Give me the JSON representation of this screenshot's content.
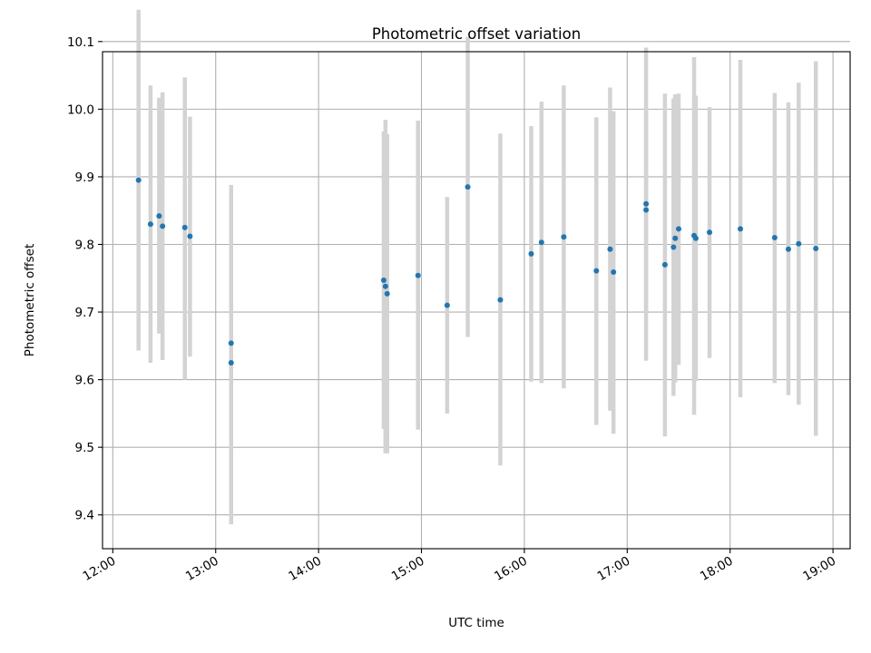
{
  "chart_data": {
    "type": "scatter",
    "title": "Photometric offset variation",
    "xlabel": "UTC time",
    "ylabel": "Photometric offset",
    "x_tick_labels": [
      "12:00",
      "13:00",
      "14:00",
      "15:00",
      "16:00",
      "17:00",
      "18:00",
      "19:00"
    ],
    "y_tick_labels": [
      "9.4",
      "9.5",
      "9.6",
      "9.7",
      "9.8",
      "9.9",
      "10.0",
      "10.1"
    ],
    "xlim": [
      "11:54",
      "19:10"
    ],
    "ylim": [
      9.35,
      10.085
    ],
    "grid": true,
    "colors": {
      "point": "#1f77b4",
      "errorbar": "#d3d3d3",
      "grid": "#b0b0b0"
    },
    "points": [
      {
        "x": "12:15",
        "y": 9.895,
        "y_low": 9.643,
        "y_high": 10.147
      },
      {
        "x": "12:22",
        "y": 9.83,
        "y_low": 9.625,
        "y_high": 10.035
      },
      {
        "x": "12:27",
        "y": 9.842,
        "y_low": 9.668,
        "y_high": 10.017
      },
      {
        "x": "12:29",
        "y": 9.827,
        "y_low": 9.629,
        "y_high": 10.025
      },
      {
        "x": "12:42",
        "y": 9.825,
        "y_low": 9.6,
        "y_high": 10.047
      },
      {
        "x": "12:45",
        "y": 9.812,
        "y_low": 9.634,
        "y_high": 9.989
      },
      {
        "x": "13:09",
        "y": 9.654,
        "y_low": 9.42,
        "y_high": 9.888
      },
      {
        "x": "13:09",
        "y": 9.625,
        "y_low": 9.386,
        "y_high": 9.865
      },
      {
        "x": "14:38",
        "y": 9.747,
        "y_low": 9.527,
        "y_high": 9.967
      },
      {
        "x": "14:39",
        "y": 9.738,
        "y_low": 9.491,
        "y_high": 9.984
      },
      {
        "x": "14:40",
        "y": 9.727,
        "y_low": 9.491,
        "y_high": 9.963
      },
      {
        "x": "14:58",
        "y": 9.754,
        "y_low": 9.526,
        "y_high": 9.983
      },
      {
        "x": "15:15",
        "y": 9.71,
        "y_low": 9.55,
        "y_high": 9.87
      },
      {
        "x": "15:27",
        "y": 9.885,
        "y_low": 9.663,
        "y_high": 10.107
      },
      {
        "x": "15:46",
        "y": 9.718,
        "y_low": 9.473,
        "y_high": 9.964
      },
      {
        "x": "16:04",
        "y": 9.786,
        "y_low": 9.597,
        "y_high": 9.975
      },
      {
        "x": "16:10",
        "y": 9.803,
        "y_low": 9.595,
        "y_high": 10.011
      },
      {
        "x": "16:23",
        "y": 9.811,
        "y_low": 9.587,
        "y_high": 10.035
      },
      {
        "x": "16:42",
        "y": 9.761,
        "y_low": 9.533,
        "y_high": 9.988
      },
      {
        "x": "16:50",
        "y": 9.793,
        "y_low": 9.554,
        "y_high": 10.032
      },
      {
        "x": "16:52",
        "y": 9.759,
        "y_low": 9.52,
        "y_high": 9.997
      },
      {
        "x": "17:11",
        "y": 9.86,
        "y_low": 9.628,
        "y_high": 10.091
      },
      {
        "x": "17:11",
        "y": 9.851,
        "y_low": 9.7,
        "y_high": 10.0
      },
      {
        "x": "17:22",
        "y": 9.77,
        "y_low": 9.516,
        "y_high": 10.023
      },
      {
        "x": "17:27",
        "y": 9.796,
        "y_low": 9.576,
        "y_high": 10.016
      },
      {
        "x": "17:28",
        "y": 9.809,
        "y_low": 9.596,
        "y_high": 10.022
      },
      {
        "x": "17:30",
        "y": 9.823,
        "y_low": 9.622,
        "y_high": 10.023
      },
      {
        "x": "17:39",
        "y": 9.813,
        "y_low": 9.548,
        "y_high": 10.077
      },
      {
        "x": "17:40",
        "y": 9.809,
        "y_low": 9.598,
        "y_high": 10.02
      },
      {
        "x": "17:48",
        "y": 9.818,
        "y_low": 9.632,
        "y_high": 10.003
      },
      {
        "x": "18:06",
        "y": 9.823,
        "y_low": 9.574,
        "y_high": 10.073
      },
      {
        "x": "18:26",
        "y": 9.81,
        "y_low": 9.595,
        "y_high": 10.024
      },
      {
        "x": "18:34",
        "y": 9.793,
        "y_low": 9.577,
        "y_high": 10.01
      },
      {
        "x": "18:40",
        "y": 9.801,
        "y_low": 9.563,
        "y_high": 10.039
      },
      {
        "x": "18:50",
        "y": 9.794,
        "y_low": 9.517,
        "y_high": 10.071
      }
    ]
  }
}
